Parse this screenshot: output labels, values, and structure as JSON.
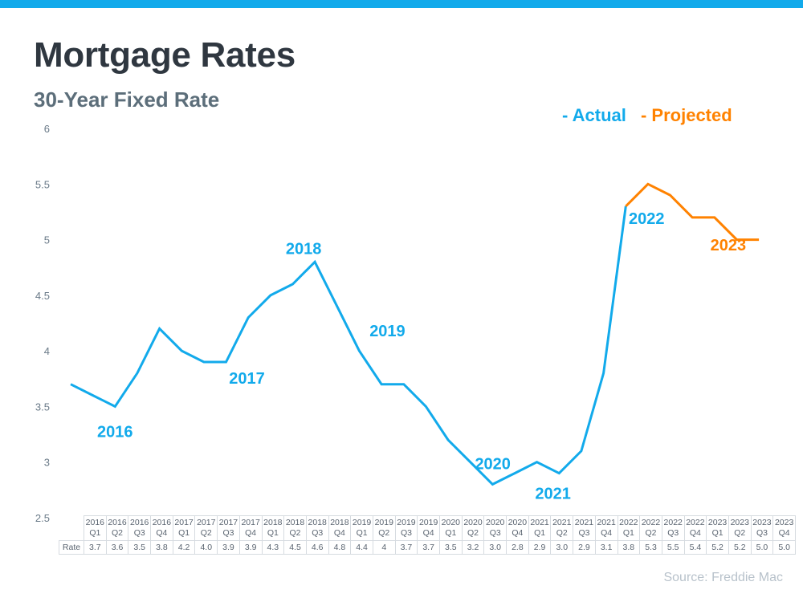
{
  "header": {
    "title": "Mortgage Rates",
    "subtitle": "30-Year Fixed Rate"
  },
  "legend": {
    "actual_label": "- Actual",
    "projected_label": "- Projected"
  },
  "source": "Source: Freddie Mac",
  "colors": {
    "top_bar": "#12aaeb",
    "actual": "#12aaeb",
    "projected": "#ff8200",
    "title": "#2f3740",
    "subtitle": "#5c6e7a"
  },
  "chart_data": {
    "type": "line",
    "title": "Mortgage Rates",
    "subtitle": "30-Year Fixed Rate",
    "xlabel": "",
    "ylabel": "",
    "ylim": [
      2.5,
      6
    ],
    "yticks": [
      "6",
      "5.5",
      "5",
      "4.5",
      "4",
      "3.5",
      "3",
      "2.5"
    ],
    "ytick_values": [
      6,
      5.5,
      5,
      4.5,
      4,
      3.5,
      3,
      2.5
    ],
    "grid": false,
    "legend_position": "top-right",
    "categories": [
      {
        "year": "2016",
        "quarter": "Q1"
      },
      {
        "year": "2016",
        "quarter": "Q2"
      },
      {
        "year": "2016",
        "quarter": "Q3"
      },
      {
        "year": "2016",
        "quarter": "Q4"
      },
      {
        "year": "2017",
        "quarter": "Q1"
      },
      {
        "year": "2017",
        "quarter": "Q2"
      },
      {
        "year": "2017",
        "quarter": "Q3"
      },
      {
        "year": "2017",
        "quarter": "Q4"
      },
      {
        "year": "2018",
        "quarter": "Q1"
      },
      {
        "year": "2018",
        "quarter": "Q2"
      },
      {
        "year": "2018",
        "quarter": "Q3"
      },
      {
        "year": "2018",
        "quarter": "Q4"
      },
      {
        "year": "2019",
        "quarter": "Q1"
      },
      {
        "year": "2019",
        "quarter": "Q2"
      },
      {
        "year": "2019",
        "quarter": "Q3"
      },
      {
        "year": "2019",
        "quarter": "Q4"
      },
      {
        "year": "2020",
        "quarter": "Q1"
      },
      {
        "year": "2020",
        "quarter": "Q2"
      },
      {
        "year": "2020",
        "quarter": "Q3"
      },
      {
        "year": "2020",
        "quarter": "Q4"
      },
      {
        "year": "2021",
        "quarter": "Q1"
      },
      {
        "year": "2021",
        "quarter": "Q2"
      },
      {
        "year": "2021",
        "quarter": "Q3"
      },
      {
        "year": "2021",
        "quarter": "Q4"
      },
      {
        "year": "2022",
        "quarter": "Q1"
      },
      {
        "year": "2022",
        "quarter": "Q2"
      },
      {
        "year": "2022",
        "quarter": "Q3"
      },
      {
        "year": "2022",
        "quarter": "Q4"
      },
      {
        "year": "2023",
        "quarter": "Q1"
      },
      {
        "year": "2023",
        "quarter": "Q2"
      },
      {
        "year": "2023",
        "quarter": "Q3"
      },
      {
        "year": "2023",
        "quarter": "Q4"
      }
    ],
    "table_row_label": "Rate",
    "table_values": [
      "3.7",
      "3.6",
      "3.5",
      "3.8",
      "4.2",
      "4.0",
      "3.9",
      "3.9",
      "4.3",
      "4.5",
      "4.6",
      "4.8",
      "4.4",
      "4",
      "3.7",
      "3.7",
      "3.5",
      "3.2",
      "3.0",
      "2.8",
      "2.9",
      "3.0",
      "2.9",
      "3.1",
      "3.8",
      "5.3",
      "5.5",
      "5.4",
      "5.2",
      "5.2",
      "5.0",
      "5.0"
    ],
    "series": [
      {
        "name": "Actual",
        "color": "#12aaeb",
        "start_index": 0,
        "values": [
          3.7,
          3.6,
          3.5,
          3.8,
          4.2,
          4.0,
          3.9,
          3.9,
          4.3,
          4.5,
          4.6,
          4.8,
          4.4,
          4.0,
          3.7,
          3.7,
          3.5,
          3.2,
          3.0,
          2.8,
          2.9,
          3.0,
          2.9,
          3.1,
          3.8,
          5.3
        ]
      },
      {
        "name": "Projected",
        "color": "#ff8200",
        "start_index": 25,
        "values": [
          5.3,
          5.5,
          5.4,
          5.2,
          5.2,
          5.0,
          5.0
        ]
      }
    ],
    "annotations": [
      {
        "text": "2016",
        "color": "#12aaeb",
        "index": 2,
        "value": 3.5
      },
      {
        "text": "2017",
        "color": "#12aaeb",
        "index": 7,
        "value": 3.9
      },
      {
        "text": "2018",
        "color": "#12aaeb",
        "index": 11,
        "value": 4.8
      },
      {
        "text": "2019",
        "color": "#12aaeb",
        "index": 13,
        "value": 4.0
      },
      {
        "text": "2020",
        "color": "#12aaeb",
        "index": 18,
        "value": 3.0
      },
      {
        "text": "2021",
        "color": "#12aaeb",
        "index": 21,
        "value": 3.0
      },
      {
        "text": "2022",
        "color": "#12aaeb",
        "index": 25,
        "value": 5.3
      },
      {
        "text": "2023",
        "color": "#ff8200",
        "index": 29,
        "value": 5.2
      }
    ]
  }
}
